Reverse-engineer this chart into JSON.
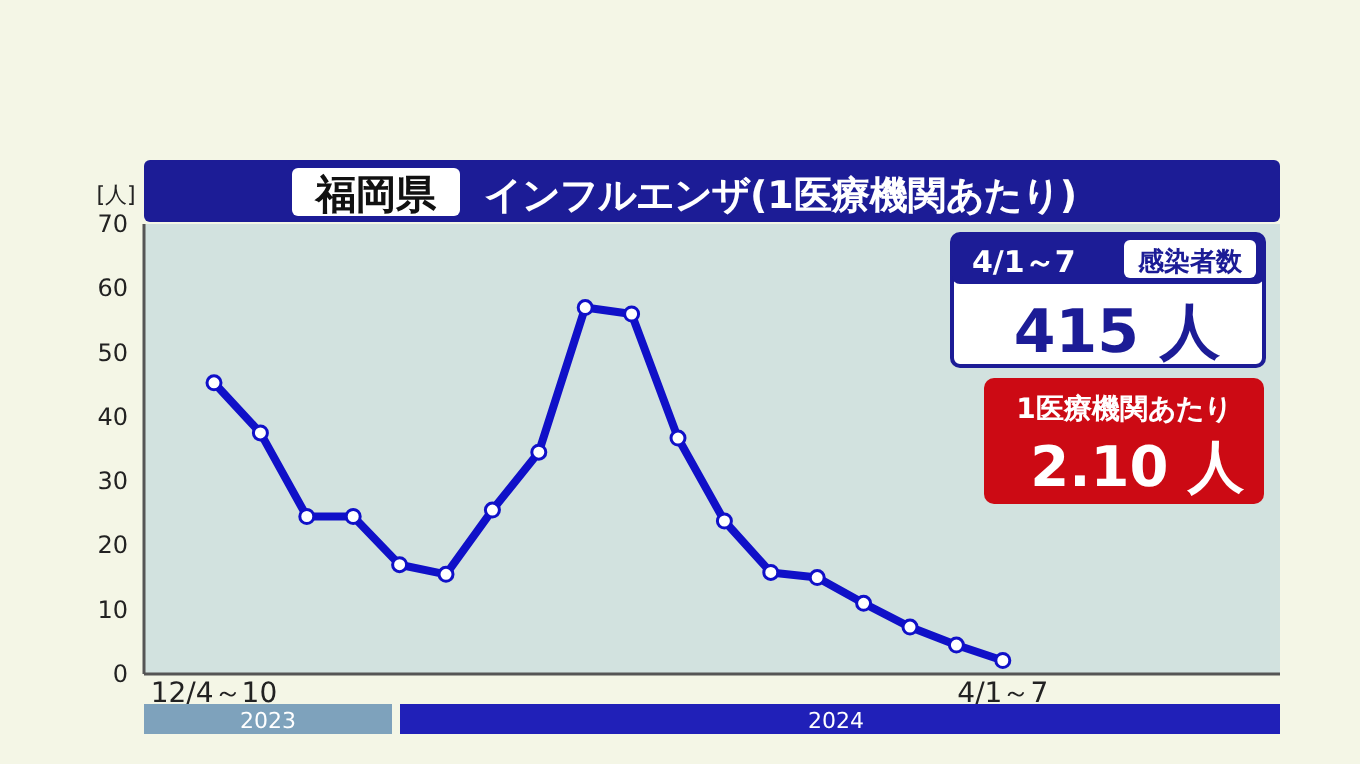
{
  "chart_data": {
    "type": "line",
    "title": "福岡県",
    "subtitle": "インフルエンザ(1医療機関あたり)",
    "ylabel": "[人]",
    "categories": [
      "12/4～10",
      null,
      null,
      null,
      null,
      null,
      null,
      null,
      null,
      null,
      null,
      null,
      null,
      null,
      null,
      null,
      null,
      "4/1～7"
    ],
    "series": [
      {
        "color": "#1010c8",
        "values": [
          45.3,
          37.5,
          24.5,
          24.5,
          17,
          15.5,
          25.5,
          34.5,
          57,
          56,
          36.7,
          23.8,
          15.8,
          15,
          11,
          7.3,
          4.5,
          2.1
        ]
      }
    ],
    "ylim": [
      0,
      70
    ],
    "yticks": [
      0,
      10,
      20,
      30,
      40,
      50,
      60,
      70
    ],
    "marker": "circle",
    "line_style": "solid",
    "annotations": [
      "4/1～7",
      "感染者数",
      "415 人",
      "1医療機関あたり",
      "2.10 人",
      "2023",
      "2024"
    ]
  }
}
